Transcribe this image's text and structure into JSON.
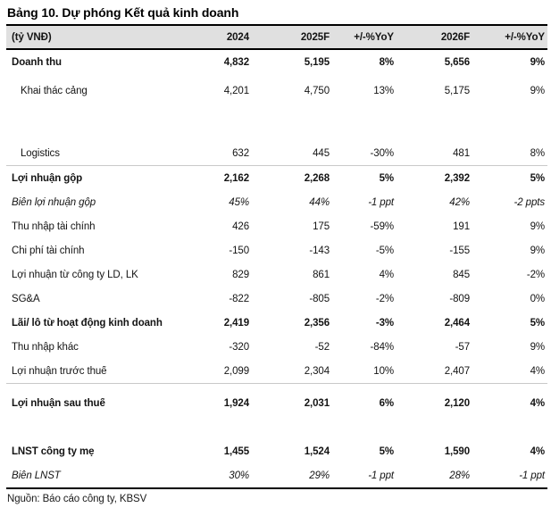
{
  "title": "Bảng 10. Dự phóng Kết quả kinh doanh",
  "source": "Nguồn: Báo cáo công ty, KBSV",
  "colors": {
    "header_bg": "#e0e0e0",
    "rule_dark": "#000000",
    "rule_light": "#c9c9c9"
  },
  "table": {
    "columns": [
      "(tỷ VNĐ)",
      "2024",
      "2025F",
      "+/-%YoY",
      "2026F",
      "+/-%YoY"
    ],
    "rows": [
      {
        "label": "Doanh thu",
        "values": [
          "4,832",
          "5,195",
          "8%",
          "5,656",
          "9%"
        ],
        "bold": true
      },
      {
        "label": "Khai thác cảng",
        "values": [
          "4,201",
          "4,750",
          "13%",
          "5,175",
          "9%"
        ],
        "indent": true,
        "gap_before": 5
      },
      {
        "label": "Logistics",
        "values": [
          "632",
          "445",
          "-30%",
          "481",
          "8%"
        ],
        "indent": true,
        "gap_before": 43,
        "sep": true
      },
      {
        "label": "Lợi nhuận gộp",
        "values": [
          "2,162",
          "2,268",
          "5%",
          "2,392",
          "5%"
        ],
        "bold": true
      },
      {
        "label": "Biên lợi nhuận gộp",
        "values": [
          "45%",
          "44%",
          "-1 ppt",
          "42%",
          "-2 ppts"
        ],
        "italic": true
      },
      {
        "label": "Thu nhập tài chính",
        "values": [
          "426",
          "175",
          "-59%",
          "191",
          "9%"
        ]
      },
      {
        "label": "Chi phí tài chính",
        "values": [
          "-150",
          "-143",
          "-5%",
          "-155",
          "9%"
        ]
      },
      {
        "label": "Lợi nhuận từ công ty LD, LK",
        "values": [
          "829",
          "861",
          "4%",
          "845",
          "-2%"
        ]
      },
      {
        "label": "SG&A",
        "values": [
          "-822",
          "-805",
          "-2%",
          "-809",
          "0%"
        ]
      },
      {
        "label": "Lãi/ lỗ từ hoạt động kinh doanh",
        "values": [
          "2,419",
          "2,356",
          "-3%",
          "2,464",
          "5%"
        ],
        "bold": true
      },
      {
        "label": "Thu nhập khác",
        "values": [
          "-320",
          "-52",
          "-84%",
          "-57",
          "9%"
        ]
      },
      {
        "label": "Lợi nhuận trước thuế",
        "values": [
          "2,099",
          "2,304",
          "10%",
          "2,407",
          "4%"
        ],
        "sep": true
      },
      {
        "label": "Lợi nhuận sau thuế",
        "values": [
          "1,924",
          "2,031",
          "6%",
          "2,120",
          "4%"
        ],
        "bold": true,
        "gap_before": 8
      },
      {
        "label": "LNST công ty mẹ",
        "values": [
          "1,455",
          "1,524",
          "5%",
          "1,590",
          "4%"
        ],
        "bold": true,
        "gap_before": 27
      },
      {
        "label": "Biên LNST",
        "values": [
          "30%",
          "29%",
          "-1 ppt",
          "28%",
          "-1 ppt"
        ],
        "italic": true
      }
    ]
  }
}
